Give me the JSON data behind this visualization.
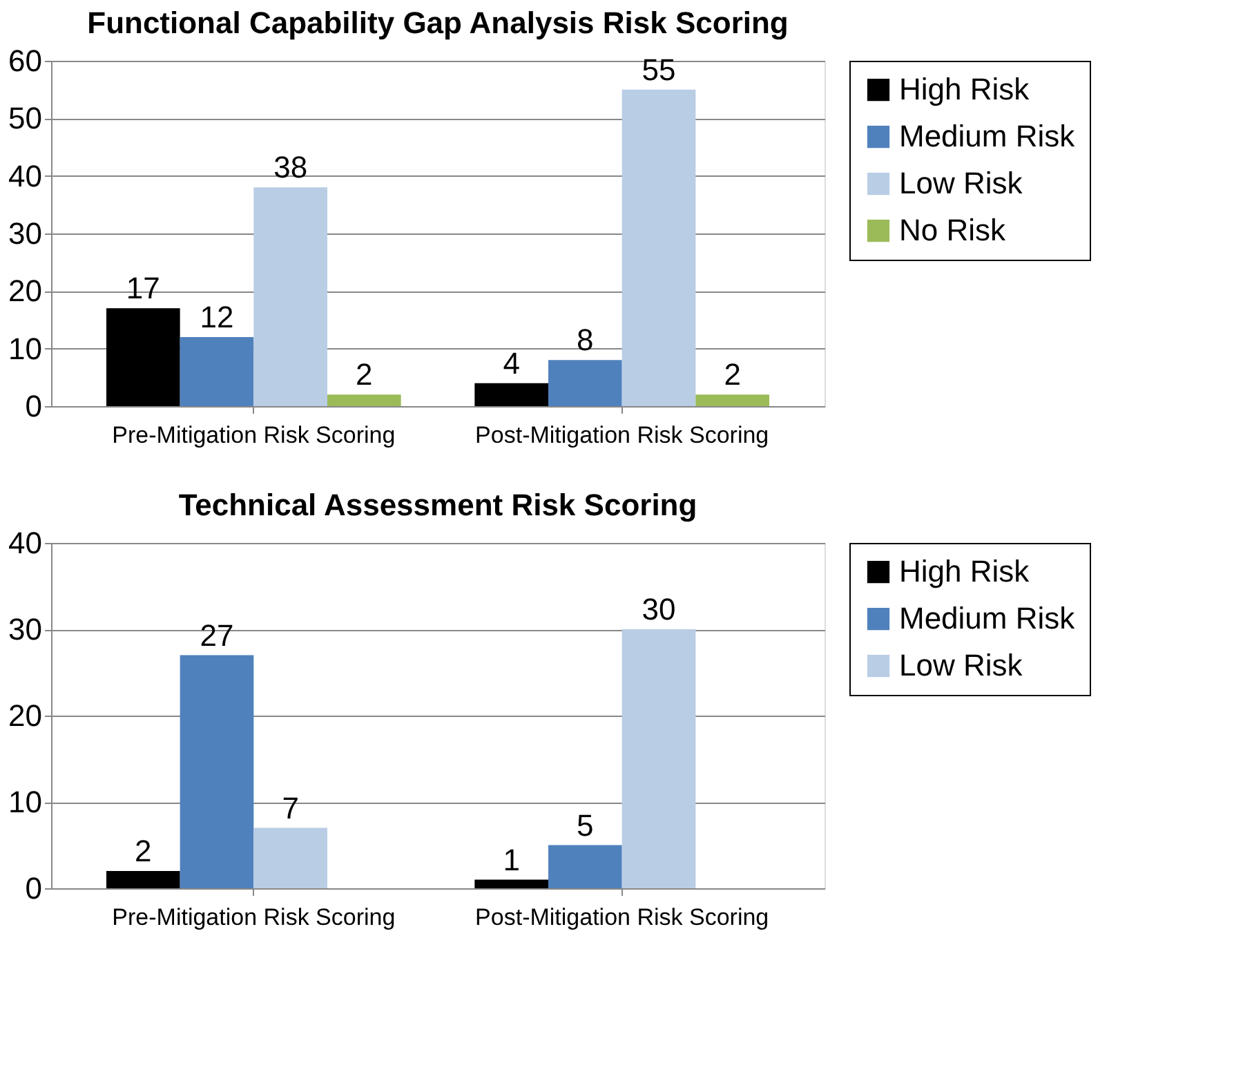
{
  "chart_data": [
    {
      "type": "bar",
      "title": "Functional Capability Gap  Analysis Risk Scoring",
      "categories": [
        "Pre-Mitigation Risk Scoring",
        "Post-Mitigation Risk Scoring"
      ],
      "series": [
        {
          "name": "High Risk",
          "color": "#000000",
          "values": [
            17,
            4
          ]
        },
        {
          "name": "Medium Risk",
          "color": "#4f81bd",
          "values": [
            12,
            8
          ]
        },
        {
          "name": "Low Risk",
          "color": "#b9cde5",
          "values": [
            38,
            55
          ]
        },
        {
          "name": "No Risk",
          "color": "#9bbb59",
          "values": [
            2,
            2
          ]
        }
      ],
      "ylim": [
        0,
        60
      ],
      "yticks": [
        0,
        10,
        20,
        30,
        40,
        50,
        60
      ],
      "grid": "y",
      "legend": "right",
      "data_labels": true
    },
    {
      "type": "bar",
      "title": "Technical Assessment Risk Scoring",
      "categories": [
        "Pre-Mitigation Risk Scoring",
        "Post-Mitigation Risk Scoring"
      ],
      "series": [
        {
          "name": "High Risk",
          "color": "#000000",
          "values": [
            2,
            1
          ]
        },
        {
          "name": "Medium Risk",
          "color": "#4f81bd",
          "values": [
            27,
            5
          ]
        },
        {
          "name": "Low Risk",
          "color": "#b9cde5",
          "values": [
            7,
            30
          ]
        }
      ],
      "ylim": [
        0,
        40
      ],
      "yticks": [
        0,
        10,
        20,
        30,
        40
      ],
      "grid": "y",
      "legend": "right",
      "data_labels": true
    }
  ]
}
